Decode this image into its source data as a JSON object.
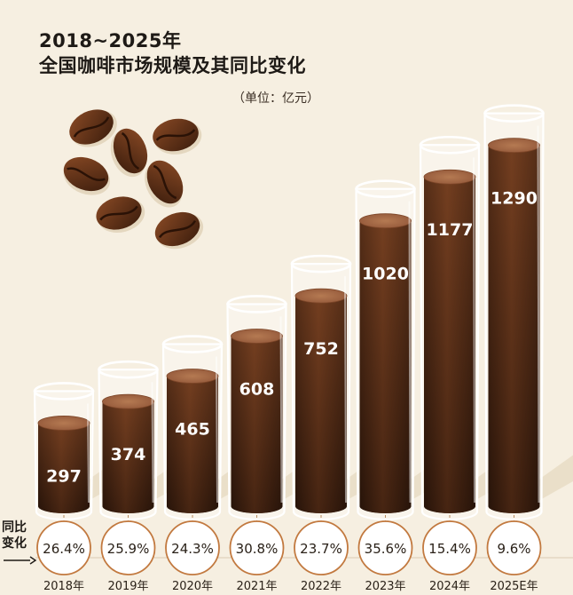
{
  "title_line1": "2018~2025年",
  "title_line2": "全国咖啡市场规模及其同比变化",
  "unit": "（单位：亿元）",
  "change_label": "同比\n变化",
  "colors": {
    "background": "#f6efe1",
    "coffee_dark": "#3b1f10",
    "coffee_mid": "#6e3a1d",
    "foam": "#a86d48",
    "glass": "#ffffff",
    "circle_border": "#c2793f"
  },
  "chart_data": {
    "type": "bar",
    "title": "2018~2025年 全国咖啡市场规模及其同比变化",
    "unit": "亿元",
    "categories": [
      "2018年",
      "2019年",
      "2020年",
      "2021年",
      "2022年",
      "2023年",
      "2024年",
      "2025E年"
    ],
    "values": [
      297,
      374,
      465,
      608,
      752,
      1020,
      1177,
      1290
    ],
    "yoy_change": [
      "26.4%",
      "25.9%",
      "24.3%",
      "30.8%",
      "23.7%",
      "35.6%",
      "15.4%",
      "9.6%"
    ]
  }
}
